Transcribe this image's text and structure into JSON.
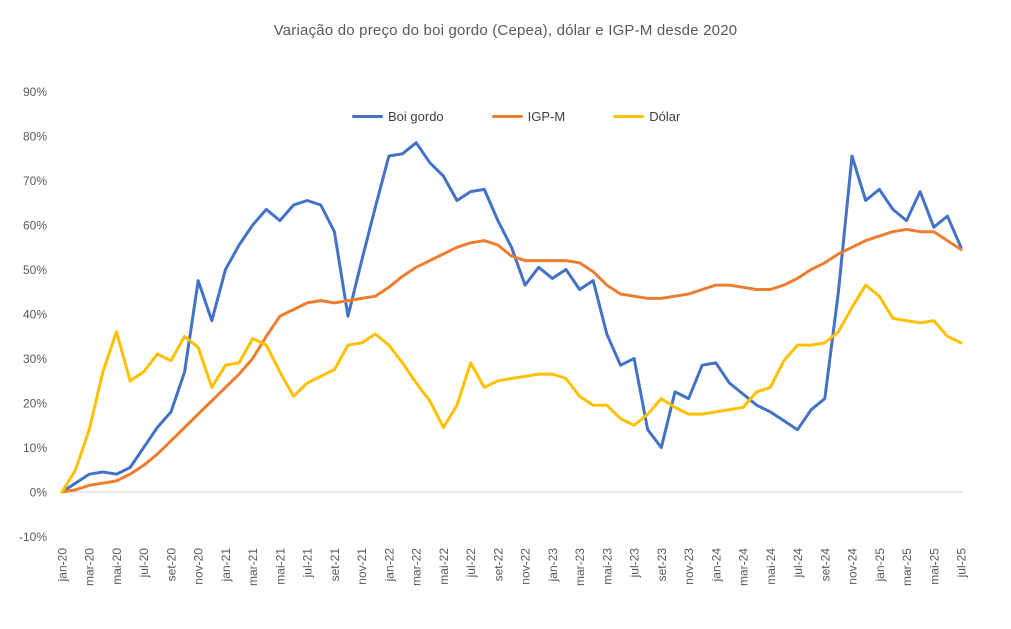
{
  "title": "Variação do preço do boi gordo (Cepea), dólar e IGP-M desde 2020",
  "chart_data": {
    "type": "line",
    "title": "Variação do preço do boi gordo (Cepea), dólar e IGP-M desde 2020",
    "xlabel": "",
    "ylabel": "",
    "ylim": [
      -10,
      90
    ],
    "y_tick_values": [
      90,
      80,
      70,
      60,
      50,
      40,
      30,
      20,
      10,
      0,
      -10
    ],
    "y_tick_labels": [
      "90%",
      "80%",
      "70%",
      "60%",
      "50%",
      "40%",
      "30%",
      "20%",
      "10%",
      "0%",
      "-10%"
    ],
    "x_tick_every": 2,
    "grid": "zero-line-only",
    "zero_line_color": "#d9d9d9",
    "legend_position": "top-center",
    "x": [
      "jan-20",
      "fev-20",
      "mar-20",
      "abr-20",
      "mai-20",
      "jun-20",
      "jul-20",
      "ago-20",
      "set-20",
      "out-20",
      "nov-20",
      "dez-20",
      "jan-21",
      "fev-21",
      "mar-21",
      "abr-21",
      "mai-21",
      "jun-21",
      "jul-21",
      "ago-21",
      "set-21",
      "out-21",
      "nov-21",
      "dez-21",
      "jan-22",
      "fev-22",
      "mar-22",
      "abr-22",
      "mai-22",
      "jun-22",
      "jul-22",
      "ago-22",
      "set-22",
      "out-22",
      "nov-22",
      "dez-22",
      "jan-23",
      "fev-23",
      "mar-23",
      "abr-23",
      "mai-23",
      "jun-23",
      "jul-23",
      "ago-23",
      "set-23",
      "out-23",
      "nov-23",
      "dez-23",
      "jan-24",
      "fev-24",
      "mar-24",
      "abr-24",
      "mai-24",
      "jun-24",
      "jul-24",
      "ago-24",
      "set-24",
      "out-24",
      "nov-24",
      "dez-24",
      "jan-25",
      "fev-25",
      "mar-25",
      "abr-25",
      "mai-25",
      "jun-25",
      "jul-25"
    ],
    "series": [
      {
        "name": "Boi gordo",
        "color": "#4472C4",
        "values": [
          0,
          2,
          4,
          4.5,
          4,
          5.5,
          10,
          14.5,
          18,
          27,
          47.5,
          38.5,
          50,
          55.5,
          60,
          63.5,
          61,
          64.5,
          65.5,
          64.5,
          58.5,
          39.5,
          52,
          64,
          75.5,
          76,
          78.5,
          74,
          71,
          65.5,
          67.5,
          68,
          61,
          55,
          46.5,
          50.5,
          48,
          50,
          45.5,
          47.5,
          35.5,
          28.5,
          30,
          14,
          10,
          22.5,
          21,
          28.5,
          29,
          24.5,
          22,
          19.5,
          18,
          16,
          14,
          18.5,
          21,
          45,
          75.5,
          65.5,
          68,
          63.5,
          61,
          67.5,
          59.5,
          62,
          55
        ]
      },
      {
        "name": "IGP-M",
        "color": "#ED7D31",
        "values": [
          0,
          0.5,
          1.5,
          2,
          2.5,
          4,
          6,
          8.5,
          11.5,
          14.5,
          17.5,
          20.5,
          23.5,
          26.5,
          30,
          35,
          39.5,
          41,
          42.5,
          43,
          42.5,
          43,
          43.5,
          44,
          46,
          48.5,
          50.5,
          52,
          53.5,
          55,
          56,
          56.5,
          55.5,
          53,
          52,
          52,
          52,
          52,
          51.5,
          49.5,
          46.5,
          44.5,
          44,
          43.5,
          43.5,
          44,
          44.5,
          45.5,
          46.5,
          46.5,
          46,
          45.5,
          45.5,
          46.5,
          48,
          50,
          51.5,
          53.5,
          55,
          56.5,
          57.5,
          58.5,
          59,
          58.5,
          58.5,
          56.5,
          54.5
        ]
      },
      {
        "name": "Dólar",
        "color": "#FFC000",
        "values": [
          0,
          5,
          14,
          27,
          36,
          25,
          27,
          31,
          29.5,
          35,
          32.5,
          23.5,
          28.5,
          29,
          34.5,
          33,
          27,
          21.5,
          24.5,
          26,
          27.5,
          33,
          33.5,
          35.5,
          33,
          29,
          24.5,
          20.5,
          14.5,
          19.5,
          29,
          23.5,
          25,
          25.5,
          26,
          26.5,
          26.5,
          25.5,
          21.5,
          19.5,
          19.5,
          16.5,
          15,
          17.5,
          21,
          19,
          17.5,
          17.5,
          18,
          18.5,
          19,
          22.5,
          23.5,
          29.5,
          33,
          33,
          33.5,
          36,
          41.5,
          46.5,
          44,
          39,
          38.5,
          38,
          38.5,
          35,
          33.5
        ]
      }
    ]
  }
}
